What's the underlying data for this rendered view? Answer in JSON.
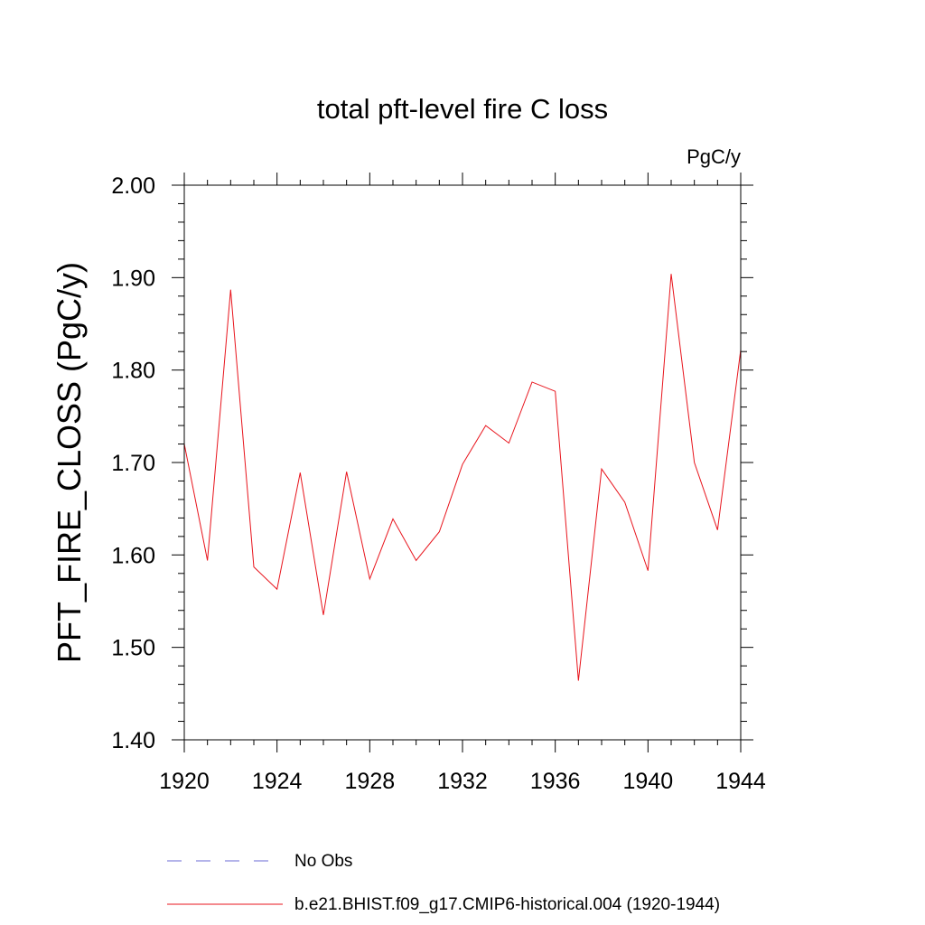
{
  "chart_data": {
    "type": "line",
    "title": "total pft-level fire C loss",
    "units": "PgC/y",
    "ylabel": "PFT_FIRE_CLOSS  (PgC/y)",
    "xlabel": "",
    "xlim": [
      1920,
      1944
    ],
    "ylim": [
      1.4,
      2.0
    ],
    "xticks": [
      1920,
      1924,
      1928,
      1932,
      1936,
      1940,
      1944
    ],
    "yticks": [
      "1.40",
      "1.50",
      "1.60",
      "1.70",
      "1.80",
      "1.90",
      "2.00"
    ],
    "grid": false,
    "legend_placement": "bottom",
    "series": [
      {
        "name": "b.e21.BHIST.f09_g17.CMIP6-historical.004 (1920-1944)",
        "color": "#e8141c",
        "style": "solid",
        "x": [
          1920,
          1921,
          1922,
          1923,
          1924,
          1925,
          1926,
          1927,
          1928,
          1929,
          1930,
          1931,
          1932,
          1933,
          1934,
          1935,
          1936,
          1937,
          1938,
          1939,
          1940,
          1941,
          1942,
          1943,
          1944
        ],
        "y": [
          1.72,
          1.594,
          1.887,
          1.587,
          1.563,
          1.689,
          1.535,
          1.69,
          1.574,
          1.639,
          1.594,
          1.625,
          1.698,
          1.74,
          1.721,
          1.787,
          1.777,
          1.464,
          1.693,
          1.657,
          1.583,
          1.904,
          1.7,
          1.627,
          1.822
        ]
      }
    ],
    "legend": [
      {
        "label": "No Obs",
        "color": "#6a6ad6",
        "style": "dashed"
      },
      {
        "label": "b.e21.BHIST.f09_g17.CMIP6-historical.004 (1920-1944)",
        "color": "#e8141c",
        "style": "solid"
      }
    ]
  }
}
